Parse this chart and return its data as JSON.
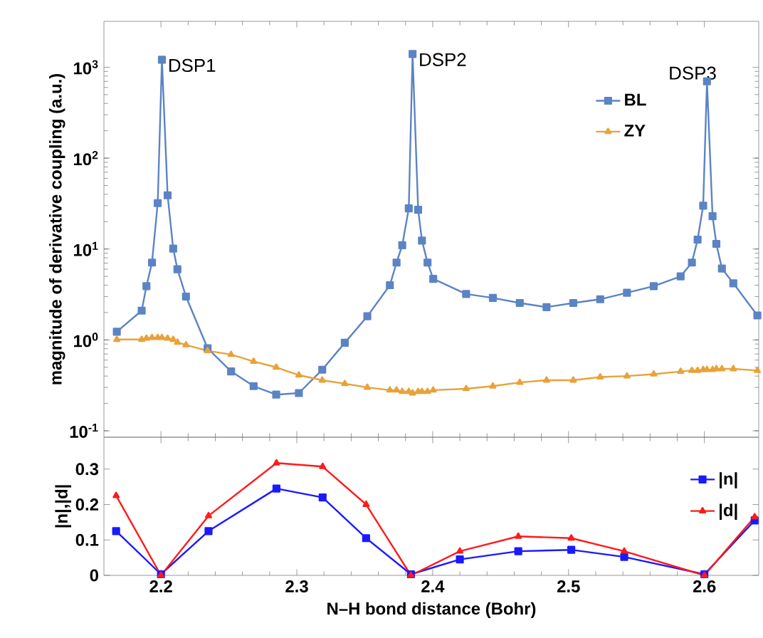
{
  "chart_data": [
    {
      "type": "line",
      "ylabel": "magnitude of derivative coupling (a.u.)",
      "log": "y",
      "xlim": [
        2.158,
        2.64
      ],
      "ylim": [
        0.085,
        3200
      ],
      "xticks": [
        {
          "value": 2.2,
          "label": null
        },
        {
          "value": 2.3,
          "label": null
        },
        {
          "value": 2.4,
          "label": null
        },
        {
          "value": 2.5,
          "label": null
        },
        {
          "value": 2.6,
          "label": null
        }
      ],
      "yticks": [
        {
          "value": 0.1,
          "label": "10$^{-1}$"
        },
        {
          "value": 1,
          "label": "10$^{0}$"
        },
        {
          "value": 10,
          "label": "10$^{1}$"
        },
        {
          "value": 100,
          "label": "10$^{2}$"
        },
        {
          "value": 1000,
          "label": "10$^{3}$"
        }
      ],
      "tick_labels": "y",
      "legend": "top right",
      "grid": false,
      "annotations": [
        {
          "text": "DSP1",
          "x": 2.2007,
          "y": 1210
        },
        {
          "text": "DSP2",
          "x": 2.3852,
          "y": 1400
        },
        {
          "text": "DSP3",
          "x": 2.6019,
          "y": 700
        }
      ],
      "series": [
        {
          "name": "BL",
          "color": "#5b84c4",
          "marker": "square",
          "x": [
            2.1675,
            2.1858,
            2.1893,
            2.1934,
            2.1976,
            2.2007,
            2.2049,
            2.209,
            2.2121,
            2.2184,
            2.2343,
            2.2516,
            2.2682,
            2.2848,
            2.3015,
            2.3187,
            2.3353,
            2.3519,
            2.3685,
            2.3734,
            2.3776,
            2.3824,
            2.3852,
            2.3893,
            2.3921,
            2.3962,
            2.4004,
            2.4246,
            2.4443,
            2.4641,
            2.4838,
            2.5035,
            2.5233,
            2.543,
            2.5627,
            2.5825,
            2.5908,
            2.595,
            2.5991,
            2.6019,
            2.606,
            2.6088,
            2.6129,
            2.6213,
            2.639
          ],
          "values": [
            1.23,
            2.1,
            3.9,
            7.1,
            32,
            1210,
            39,
            10.1,
            6.0,
            3.0,
            0.81,
            0.45,
            0.31,
            0.25,
            0.26,
            0.47,
            0.93,
            1.82,
            4.0,
            7.1,
            11,
            28,
            1400,
            27,
            12.4,
            7.1,
            4.7,
            3.2,
            2.9,
            2.55,
            2.29,
            2.55,
            2.8,
            3.3,
            3.9,
            5.0,
            7.1,
            12.7,
            30,
            700,
            23,
            11.4,
            6.1,
            4.2,
            1.86
          ]
        },
        {
          "name": "ZY",
          "color": "#e8a23a",
          "marker": "triangle",
          "x": [
            2.1675,
            2.1858,
            2.1893,
            2.1934,
            2.1976,
            2.2007,
            2.2049,
            2.209,
            2.2121,
            2.2184,
            2.2343,
            2.2516,
            2.2682,
            2.2848,
            2.3015,
            2.3187,
            2.3353,
            2.3519,
            2.3685,
            2.3734,
            2.3776,
            2.3824,
            2.3852,
            2.3893,
            2.3921,
            2.3962,
            2.4004,
            2.4246,
            2.4443,
            2.4641,
            2.4838,
            2.5035,
            2.5233,
            2.543,
            2.5627,
            2.5825,
            2.5908,
            2.595,
            2.5991,
            2.6019,
            2.606,
            2.6088,
            2.6129,
            2.6213,
            2.639
          ],
          "values": [
            1.01,
            1.01,
            1.04,
            1.06,
            1.06,
            1.06,
            1.04,
            1.01,
            0.94,
            0.88,
            0.76,
            0.69,
            0.58,
            0.5,
            0.41,
            0.36,
            0.33,
            0.3,
            0.28,
            0.28,
            0.27,
            0.27,
            0.26,
            0.27,
            0.27,
            0.27,
            0.28,
            0.29,
            0.31,
            0.34,
            0.36,
            0.36,
            0.39,
            0.4,
            0.42,
            0.45,
            0.46,
            0.46,
            0.47,
            0.47,
            0.47,
            0.48,
            0.48,
            0.48,
            0.46
          ]
        }
      ]
    },
    {
      "type": "line",
      "xlabel": "N–H bond distance (Bohr)",
      "ylabel": "|n|,|d|",
      "xlim": [
        2.158,
        2.64
      ],
      "ylim": [
        0,
        0.39
      ],
      "xticks": [
        2.2,
        2.3,
        2.4,
        2.5,
        2.6
      ],
      "yticks": [
        0,
        0.1,
        0.2,
        0.3
      ],
      "legend": "right",
      "grid": false,
      "series": [
        {
          "name": "|n|",
          "color": "#1a1aff",
          "marker": "square",
          "x": [
            2.167,
            2.2,
            2.235,
            2.285,
            2.319,
            2.351,
            2.384,
            2.42,
            2.463,
            2.502,
            2.541,
            2.6,
            2.637
          ],
          "values": [
            0.125,
            0.003,
            0.125,
            0.245,
            0.22,
            0.105,
            0.003,
            0.045,
            0.068,
            0.072,
            0.052,
            0.003,
            0.155
          ]
        },
        {
          "name": "|d|",
          "color": "#ff1a1a",
          "marker": "triangle",
          "x": [
            2.167,
            2.2,
            2.235,
            2.285,
            2.319,
            2.351,
            2.384,
            2.42,
            2.463,
            2.502,
            2.541,
            2.6,
            2.637
          ],
          "values": [
            0.225,
            0,
            0.168,
            0.317,
            0.307,
            0.2,
            0,
            0.068,
            0.11,
            0.105,
            0.068,
            0,
            0.165
          ]
        }
      ]
    }
  ]
}
